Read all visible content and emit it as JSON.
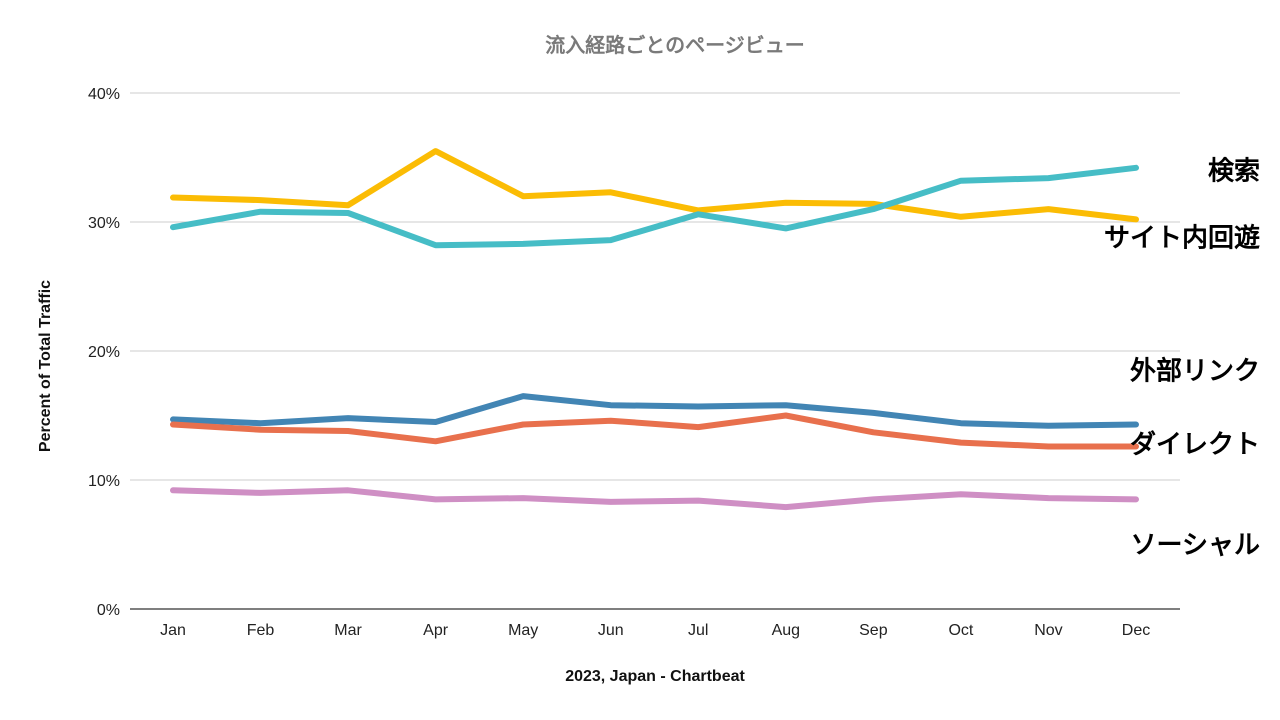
{
  "chart_data": {
    "type": "line",
    "title": "流入経路ごとのページビュー",
    "xlabel": "2023, Japan - Chartbeat",
    "ylabel": "Percent of Total Traffic",
    "categories": [
      "Jan",
      "Feb",
      "Mar",
      "Apr",
      "May",
      "Jun",
      "Jul",
      "Aug",
      "Sep",
      "Oct",
      "Nov",
      "Dec"
    ],
    "ylim": [
      0,
      40
    ],
    "yticks": [
      0,
      10,
      20,
      30,
      40
    ],
    "ytick_labels": [
      "0%",
      "10%",
      "20%",
      "30%",
      "40%"
    ],
    "grid": true,
    "legend": "direct labels at right end of lines",
    "series": [
      {
        "name": "検索",
        "color": "#fbbc04",
        "values": [
          31.9,
          31.7,
          31.3,
          35.5,
          32.0,
          32.3,
          30.9,
          31.5,
          31.4,
          30.4,
          31.0,
          30.2
        ]
      },
      {
        "name": "サイト内回遊",
        "color": "#46bdc6",
        "values": [
          29.6,
          30.8,
          30.7,
          28.2,
          28.3,
          28.6,
          30.6,
          29.5,
          31.0,
          33.2,
          33.4,
          34.2
        ]
      },
      {
        "name": "外部リンク",
        "color": "#4285b4",
        "values": [
          14.7,
          14.4,
          14.8,
          14.5,
          16.5,
          15.8,
          15.7,
          15.8,
          15.2,
          14.4,
          14.2,
          14.3
        ]
      },
      {
        "name": "ダイレクト",
        "color": "#e8704d",
        "values": [
          14.3,
          13.9,
          13.8,
          13.0,
          14.3,
          14.6,
          14.1,
          15.0,
          13.7,
          12.9,
          12.6,
          12.6
        ]
      },
      {
        "name": "ソーシャル",
        "color": "#cf8fc4",
        "values": [
          9.2,
          9.0,
          9.2,
          8.5,
          8.6,
          8.3,
          8.4,
          7.9,
          8.5,
          8.9,
          8.6,
          8.5
        ]
      }
    ],
    "label_anchor_values": [
      34.0,
      28.8,
      18.5,
      12.8,
      5.0
    ]
  }
}
